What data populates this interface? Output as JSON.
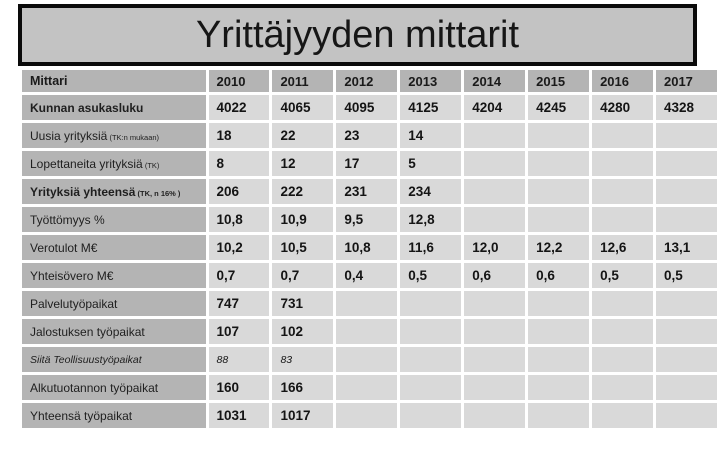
{
  "title": "Yrittäjyyden mittarit",
  "colors": {
    "title_box_fill": "#c3c3c3",
    "title_box_border": "#0a0a0a",
    "header_cell_fill": "#b4b4b4",
    "label_cell_fill": "#b4b4b4",
    "value_cell_fill": "#d9d9d9",
    "page_background": "#ffffff",
    "text": "#141414"
  },
  "table": {
    "columns": [
      "Mittari",
      "2010",
      "2011",
      "2012",
      "2013",
      "2014",
      "2015",
      "2016",
      "2017"
    ],
    "rows": [
      {
        "label": "Kunnan asukasluku",
        "sub": "",
        "bold": true,
        "italic": false,
        "values": [
          "4022",
          "4065",
          "4095",
          "4125",
          "4204",
          "4245",
          "4280",
          "4328"
        ]
      },
      {
        "label": "Uusia yrityksiä",
        "sub": "(TK:n mukaan)",
        "bold": false,
        "italic": false,
        "values": [
          "18",
          "22",
          "23",
          "14",
          "",
          "",
          "",
          ""
        ]
      },
      {
        "label": "Lopettaneita yrityksiä",
        "sub": "(TK)",
        "bold": false,
        "italic": false,
        "values": [
          "8",
          "12",
          "17",
          "5",
          "",
          "",
          "",
          ""
        ]
      },
      {
        "label": "Yrityksiä yhteensä",
        "sub": "(TK, n 16% )",
        "bold": true,
        "italic": false,
        "values": [
          "206",
          "222",
          "231",
          "234",
          "",
          "",
          "",
          ""
        ]
      },
      {
        "label": "Työttömyys %",
        "sub": "",
        "bold": false,
        "italic": false,
        "values": [
          "10,8",
          "10,9",
          "9,5",
          "12,8",
          "",
          "",
          "",
          ""
        ]
      },
      {
        "label": "Verotulot M€",
        "sub": "",
        "bold": false,
        "italic": false,
        "values": [
          "10,2",
          "10,5",
          "10,8",
          "11,6",
          "12,0",
          "12,2",
          "12,6",
          "13,1"
        ]
      },
      {
        "label": "Yhteisövero M€",
        "sub": "",
        "bold": false,
        "italic": false,
        "values": [
          "0,7",
          "0,7",
          "0,4",
          "0,5",
          "0,6",
          "0,6",
          "0,5",
          "0,5"
        ]
      },
      {
        "label": "Palvelutyöpaikat",
        "sub": "",
        "bold": false,
        "italic": false,
        "values": [
          "747",
          "731",
          "",
          "",
          "",
          "",
          "",
          ""
        ]
      },
      {
        "label": "Jalostuksen työpaikat",
        "sub": "",
        "bold": false,
        "italic": false,
        "values": [
          "107",
          "102",
          "",
          "",
          "",
          "",
          "",
          ""
        ]
      },
      {
        "label": "Siitä Teollisuustyöpaikat",
        "sub": "",
        "bold": false,
        "italic": true,
        "values": [
          "88",
          "83",
          "",
          "",
          "",
          "",
          "",
          ""
        ]
      },
      {
        "label": "Alkutuotannon työpaikat",
        "sub": "",
        "bold": false,
        "italic": false,
        "values": [
          "160",
          "166",
          "",
          "",
          "",
          "",
          "",
          ""
        ]
      },
      {
        "label": "Yhteensä työpaikat",
        "sub": "",
        "bold": false,
        "italic": false,
        "values": [
          "1031",
          "1017",
          "",
          "",
          "",
          "",
          "",
          ""
        ]
      }
    ]
  }
}
